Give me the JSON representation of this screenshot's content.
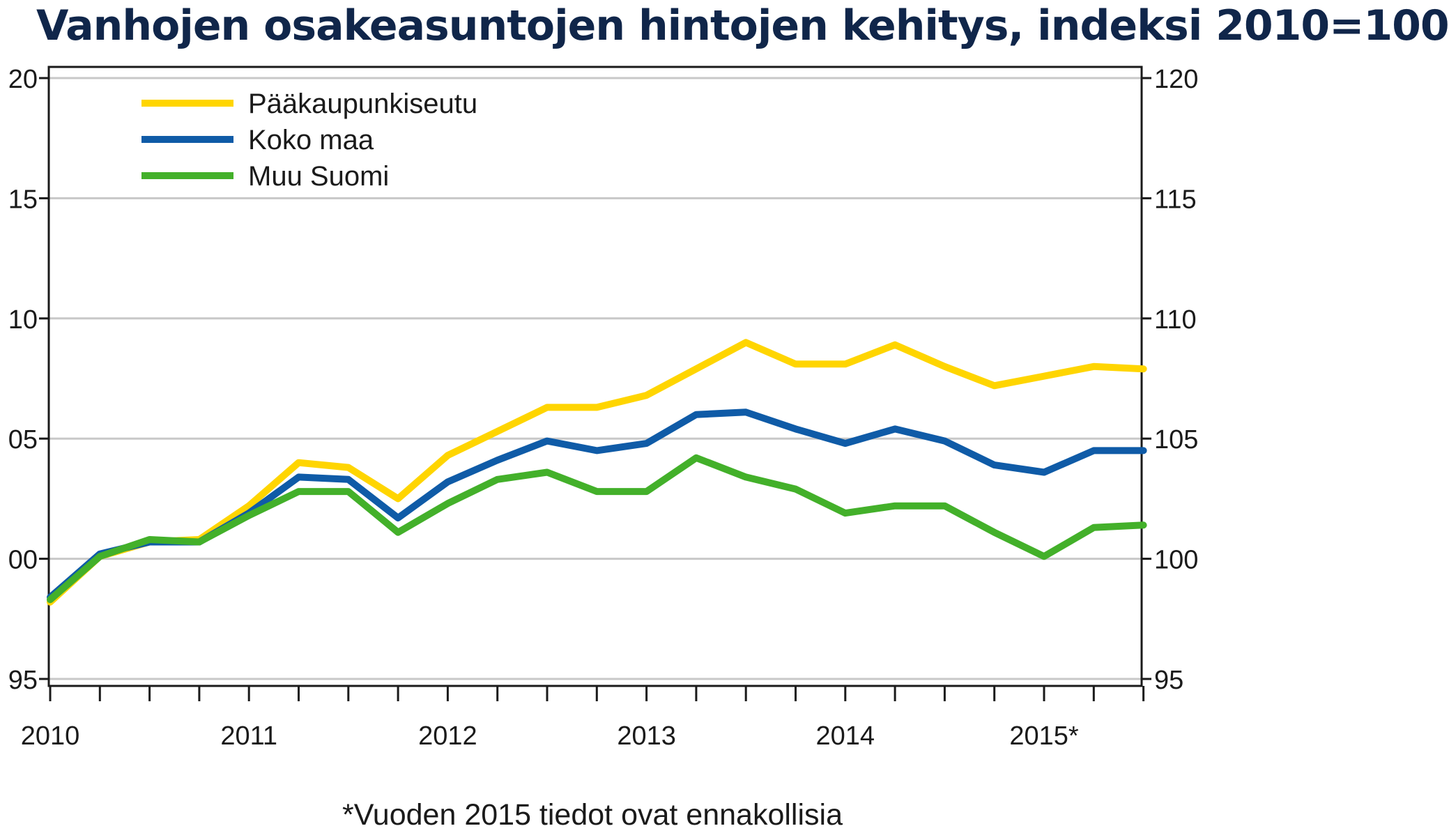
{
  "chart_data": {
    "type": "line",
    "title": "Vanhojen osakeasuntojen hintojen kehitys, indeksi 2010=100",
    "footnote": "*Vuoden 2015 tiedot ovat ennakollisia",
    "x": [
      "2010Q1",
      "2010Q2",
      "2010Q3",
      "2010Q4",
      "2011Q1",
      "2011Q2",
      "2011Q3",
      "2011Q4",
      "2012Q1",
      "2012Q2",
      "2012Q3",
      "2012Q4",
      "2013Q1",
      "2013Q2",
      "2013Q3",
      "2013Q4",
      "2014Q1",
      "2014Q2",
      "2014Q3",
      "2014Q4",
      "2015Q1",
      "2015Q2",
      "2015Q3"
    ],
    "x_tick_labels": [
      "2010",
      "2011",
      "2012",
      "2013",
      "2014",
      "2015*"
    ],
    "y_tick_labels": [
      "95",
      "100",
      "105",
      "110",
      "115",
      "120"
    ],
    "y_tick_labels_left": [
      "95",
      "00",
      "05",
      "10",
      "15",
      "20"
    ],
    "ylim": [
      95,
      120
    ],
    "grid": true,
    "legend_position": "top-left",
    "series": [
      {
        "name": "Pääkaupunkiseutu",
        "color": "#ffd500",
        "values": [
          98.2,
          100.1,
          100.7,
          100.8,
          102.2,
          104.0,
          103.8,
          102.5,
          104.3,
          105.3,
          106.3,
          106.3,
          106.8,
          107.9,
          109.0,
          108.1,
          108.1,
          108.9,
          108.0,
          107.2,
          107.6,
          108.0,
          107.9
        ]
      },
      {
        "name": "Koko maa",
        "color": "#0f5ba7",
        "values": [
          98.4,
          100.2,
          100.7,
          100.7,
          101.9,
          103.4,
          103.3,
          101.7,
          103.2,
          104.1,
          104.9,
          104.5,
          104.8,
          106.0,
          106.1,
          105.4,
          104.8,
          105.4,
          104.9,
          103.9,
          103.6,
          104.5,
          104.5
        ]
      },
      {
        "name": "Muu Suomi",
        "color": "#43b02a",
        "values": [
          98.3,
          100.1,
          100.8,
          100.7,
          101.8,
          102.8,
          102.8,
          101.1,
          102.3,
          103.3,
          103.6,
          102.8,
          102.8,
          104.2,
          103.4,
          102.9,
          101.9,
          102.2,
          102.2,
          101.1,
          100.1,
          101.3,
          101.4
        ]
      }
    ]
  }
}
